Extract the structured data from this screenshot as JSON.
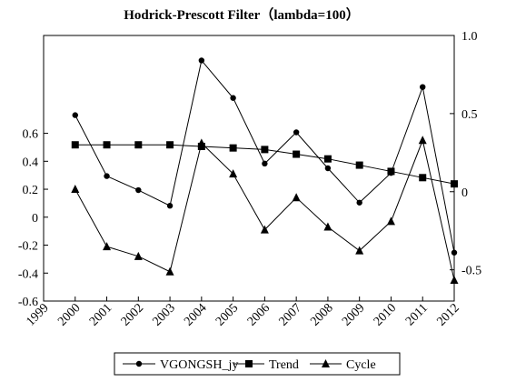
{
  "chart_data": {
    "type": "line",
    "title": "Hodrick-Prescott Filter（lambda=100）",
    "x_ticks": [
      "1999",
      "2000",
      "2001",
      "2002",
      "2003",
      "2004",
      "2005",
      "2006",
      "2007",
      "2008",
      "2009",
      "2010",
      "2011",
      "2012"
    ],
    "x": [
      2000,
      2001,
      2002,
      2003,
      2004,
      2005,
      2006,
      2007,
      2008,
      2009,
      2010,
      2011,
      2012
    ],
    "xlim": [
      1999,
      2012
    ],
    "right_axis": {
      "ylim": [
        -0.7,
        1.0
      ],
      "ticks": [
        "1.0",
        "0.5",
        "0",
        "-0.5"
      ],
      "tick_values": [
        1.0,
        0.5,
        0,
        -0.5
      ]
    },
    "left_axis": {
      "ylim": [
        -0.6,
        1.3
      ],
      "ticks": [
        "0.6",
        "0.4",
        "0.2",
        "0",
        "-0.2",
        "-0.4",
        "-0.6"
      ],
      "tick_values": [
        0.6,
        0.4,
        0.2,
        0,
        -0.2,
        -0.4,
        -0.6
      ]
    },
    "series": [
      {
        "name": "VGONGSH_jy",
        "axis": "right",
        "marker": "circle",
        "values": [
          0.49,
          0.1,
          0.01,
          -0.09,
          0.84,
          0.6,
          0.18,
          0.38,
          0.15,
          -0.07,
          0.12,
          0.67,
          -0.39
        ]
      },
      {
        "name": "Trend",
        "axis": "right",
        "marker": "square",
        "values": [
          0.3,
          0.3,
          0.3,
          0.3,
          0.29,
          0.28,
          0.27,
          0.24,
          0.21,
          0.17,
          0.13,
          0.09,
          0.05
        ]
      },
      {
        "name": "Cycle",
        "axis": "left",
        "marker": "triangle",
        "values": [
          0.2,
          -0.21,
          -0.28,
          -0.39,
          0.53,
          0.31,
          -0.09,
          0.14,
          -0.07,
          -0.24,
          -0.03,
          0.55,
          -0.45
        ]
      }
    ],
    "legend_position": "bottom",
    "grid": false
  }
}
